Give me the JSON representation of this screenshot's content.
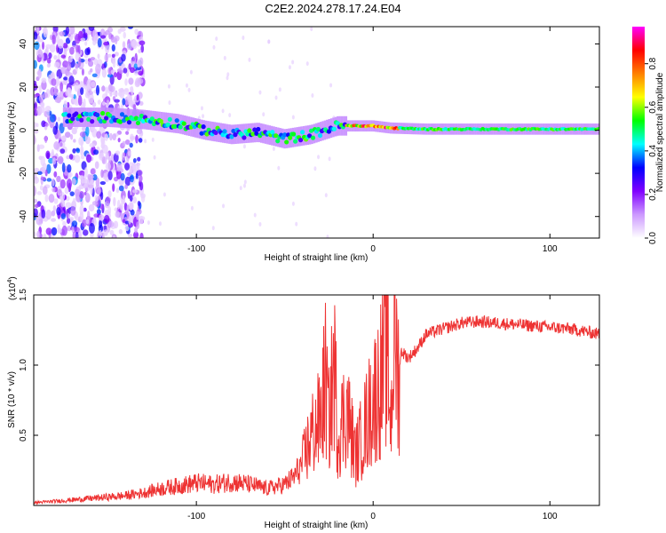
{
  "title": "C2E2.2024.278.17.24.E04",
  "chart_data": [
    {
      "type": "heatmap",
      "xlabel": "Height of straight line (km)",
      "ylabel": "Frequency (Hz)",
      "xlim": [
        -192,
        128
      ],
      "ylim": [
        -50,
        48
      ],
      "xticks": [
        -100,
        0,
        100
      ],
      "xtick_labels": [
        "-100",
        "0",
        "100"
      ],
      "yticks": [
        -40,
        -20,
        0,
        20,
        40
      ],
      "ytick_labels": [
        "-40",
        "-20",
        "0",
        "20",
        "40"
      ],
      "colorbar": {
        "label": "Normalized spectral amplitude",
        "range": [
          0,
          0.97
        ],
        "ticks": [
          0.0,
          0.2,
          0.4,
          0.6,
          0.8
        ],
        "tick_labels": [
          "0.0",
          "0.2",
          "0.4",
          "0.6",
          "0.8"
        ],
        "colormap": [
          "#ffffff",
          "#cc99ff",
          "#8000ff",
          "#0000ff",
          "#00ffff",
          "#00ff00",
          "#ffff00",
          "#ff8000",
          "#ff0000",
          "#ff00ff"
        ]
      },
      "ridge": [
        {
          "x": -170,
          "y": 6
        },
        {
          "x": -150,
          "y": 6
        },
        {
          "x": -130,
          "y": 5
        },
        {
          "x": -110,
          "y": 3
        },
        {
          "x": -95,
          "y": 0
        },
        {
          "x": -80,
          "y": -2
        },
        {
          "x": -65,
          "y": -1
        },
        {
          "x": -50,
          "y": -4
        },
        {
          "x": -35,
          "y": -2
        },
        {
          "x": -20,
          "y": 2
        },
        {
          "x": -10,
          "y": 2
        },
        {
          "x": 0,
          "y": 2
        },
        {
          "x": 10,
          "y": 1
        },
        {
          "x": 30,
          "y": 0.5
        },
        {
          "x": 60,
          "y": 0.5
        },
        {
          "x": 90,
          "y": 0.5
        },
        {
          "x": 128,
          "y": 0.5
        }
      ],
      "noise_region_x": [
        -192,
        -130
      ]
    },
    {
      "type": "line",
      "xlabel": "Height of straight line (km)",
      "ylabel": "SNR (10 * v/v)",
      "y_multiplier_label": "(x10",
      "y_multiplier_exp": "4",
      "y_multiplier_close": ")",
      "xlim": [
        -192,
        128
      ],
      "ylim": [
        0,
        1.5
      ],
      "xticks": [
        -100,
        0,
        100
      ],
      "xtick_labels": [
        "-100",
        "0",
        "100"
      ],
      "yticks": [
        0.5,
        1.0,
        1.5
      ],
      "ytick_labels": [
        "0.5",
        "1.0",
        "1.5"
      ],
      "color": "#ee3333",
      "x": [
        -192,
        -180,
        -170,
        -160,
        -150,
        -140,
        -130,
        -120,
        -110,
        -100,
        -90,
        -80,
        -70,
        -60,
        -50,
        -45,
        -40,
        -35,
        -30,
        -27,
        -25,
        -22,
        -20,
        -15,
        -10,
        -5,
        0,
        3,
        5,
        8,
        10,
        12,
        14,
        16,
        20,
        25,
        30,
        40,
        50,
        60,
        70,
        80,
        90,
        100,
        110,
        120,
        128
      ],
      "y": [
        0.02,
        0.03,
        0.04,
        0.05,
        0.06,
        0.07,
        0.09,
        0.12,
        0.14,
        0.16,
        0.15,
        0.17,
        0.15,
        0.12,
        0.15,
        0.2,
        0.3,
        0.5,
        0.6,
        0.9,
        0.6,
        1.0,
        0.5,
        0.7,
        0.35,
        0.55,
        0.75,
        0.85,
        0.95,
        1.1,
        0.6,
        1.3,
        0.9,
        1.1,
        1.05,
        1.12,
        1.22,
        1.26,
        1.3,
        1.31,
        1.3,
        1.29,
        1.28,
        1.27,
        1.26,
        1.24,
        1.22
      ]
    }
  ]
}
